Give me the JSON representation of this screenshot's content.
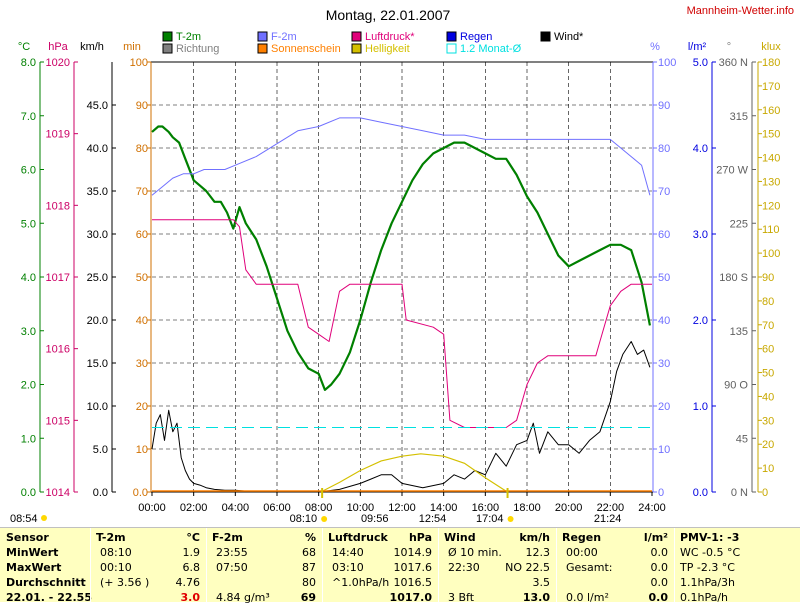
{
  "header": {
    "title": "Montag, 22.01.2007",
    "site": "Mannheim-Wetter.info"
  },
  "legend": [
    {
      "label": "T-2m",
      "color": "#008000"
    },
    {
      "label": "F-2m",
      "color": "#7070ff"
    },
    {
      "label": "Luftdruck*",
      "color": "#e0007a"
    },
    {
      "label": "Regen",
      "color": "#0000e0"
    },
    {
      "label": "Wind*",
      "color": "#000000"
    },
    {
      "label": "Richtung",
      "color": "#808080"
    },
    {
      "label": "Sonnenschein",
      "color": "#ff8000"
    },
    {
      "label": "Helligkeit",
      "color": "#d4c000"
    },
    {
      "label": "1.2 Monat-Ø",
      "color": "#00e0e0"
    }
  ],
  "units": {
    "temp": "°C",
    "pressure": "hPa",
    "wind": "km/h",
    "minutes": "min",
    "percent": "%",
    "rain": "l/m²",
    "direction": "°",
    "lux": "klux"
  },
  "axes": {
    "temp_ticks": [
      "8.0",
      "7.0",
      "6.0",
      "5.0",
      "4.0",
      "3.0",
      "2.0",
      "1.0",
      "0.0"
    ],
    "pressure_ticks": [
      "1020",
      "1019",
      "1018",
      "1017",
      "1016",
      "1015",
      "1014"
    ],
    "wind_ticks": [
      "45.0",
      "40.0",
      "35.0",
      "30.0",
      "25.0",
      "20.0",
      "15.0",
      "10.0",
      "5.0",
      "0.0"
    ],
    "min_ticks": [
      "100",
      "90",
      "80",
      "70",
      "60",
      "50",
      "40",
      "30",
      "20",
      "10",
      "0.0"
    ],
    "pct_ticks": [
      "100",
      "90",
      "80",
      "70",
      "60",
      "50",
      "40",
      "30",
      "20",
      "10",
      "0"
    ],
    "rain_ticks": [
      "5.0",
      "4.0",
      "3.0",
      "2.0",
      "1.0",
      "0.0"
    ],
    "dir_ticks": [
      "360 N",
      "315",
      "270 W",
      "225",
      "180 S",
      "135",
      "90 O",
      "45",
      "0 N"
    ],
    "lux_ticks": [
      "180",
      "170",
      "160",
      "150",
      "140",
      "130",
      "120",
      "110",
      "100",
      "90",
      "80",
      "70",
      "60",
      "50",
      "40",
      "30",
      "20",
      "10",
      "0"
    ],
    "time_ticks": [
      "00:00",
      "02:00",
      "04:00",
      "06:00",
      "08:00",
      "10:00",
      "12:00",
      "14:00",
      "16:00",
      "18:00",
      "20:00",
      "22:00",
      "24:00"
    ]
  },
  "markers": {
    "sunrise": "08:10",
    "noon": "12:54",
    "sunset": "17:04",
    "moonrise": "08:54",
    "moon_a": "09:56",
    "moon_b": "21:24"
  },
  "chart_data": {
    "type": "line",
    "title": "Montag, 22.01.2007",
    "x_unit": "hours",
    "xlim": [
      0,
      24
    ],
    "series": [
      {
        "name": "T-2m",
        "unit": "°C",
        "ylim": [
          0,
          8
        ],
        "color": "#008000",
        "x": [
          0,
          0.3,
          0.5,
          0.8,
          1.0,
          1.3,
          1.6,
          2.0,
          2.3,
          2.6,
          3.0,
          3.3,
          3.6,
          3.9,
          4.2,
          4.5,
          5.0,
          5.5,
          6.0,
          6.5,
          7.0,
          7.5,
          8.0,
          8.3,
          8.6,
          9.0,
          9.5,
          10.0,
          10.5,
          11.0,
          11.5,
          12.0,
          12.5,
          13.0,
          13.5,
          14.0,
          14.5,
          15.0,
          15.5,
          16.0,
          16.5,
          17.0,
          17.5,
          18.0,
          18.5,
          19.0,
          19.5,
          20.0,
          20.5,
          21.0,
          21.5,
          22.0,
          22.5,
          23.0,
          23.5,
          23.9
        ],
        "y": [
          6.7,
          6.8,
          6.8,
          6.7,
          6.6,
          6.5,
          6.2,
          5.8,
          5.7,
          5.6,
          5.4,
          5.4,
          5.2,
          4.9,
          5.3,
          5.0,
          4.7,
          4.2,
          3.6,
          3.0,
          2.6,
          2.3,
          2.2,
          1.9,
          2.0,
          2.2,
          2.6,
          3.2,
          3.9,
          4.5,
          5.0,
          5.4,
          5.8,
          6.1,
          6.3,
          6.4,
          6.5,
          6.5,
          6.4,
          6.3,
          6.2,
          6.2,
          5.9,
          5.5,
          5.2,
          4.8,
          4.4,
          4.2,
          4.3,
          4.4,
          4.5,
          4.6,
          4.6,
          4.5,
          3.9,
          3.1
        ]
      },
      {
        "name": "F-2m",
        "unit": "%",
        "ylim": [
          0,
          100
        ],
        "color": "#7070ff",
        "x": [
          0,
          0.5,
          1.0,
          1.5,
          2.0,
          2.5,
          3.0,
          3.5,
          4.0,
          5.0,
          6.0,
          7.0,
          8.0,
          9.0,
          10.0,
          11.0,
          12.0,
          13.0,
          14.0,
          15.0,
          16.0,
          17.0,
          18.0,
          19.0,
          20.0,
          21.0,
          22.0,
          22.5,
          23.0,
          23.5,
          23.9
        ],
        "y": [
          69,
          71,
          73,
          74,
          74,
          75,
          75,
          75,
          76,
          78,
          81,
          84,
          85,
          87,
          87,
          86,
          85,
          84,
          83,
          83,
          82,
          82,
          82,
          82,
          82,
          82,
          82,
          80,
          78,
          76,
          69
        ]
      },
      {
        "name": "Luftdruck*",
        "unit": "hPa",
        "ylim": [
          1014,
          1020
        ],
        "color": "#e0007a",
        "x": [
          0,
          2.0,
          3.9,
          4.2,
          4.5,
          5.0,
          6.0,
          7.0,
          7.5,
          8.0,
          8.5,
          9.0,
          9.5,
          10.0,
          11.0,
          12.0,
          12.2,
          13.5,
          14.0,
          14.3,
          15.0,
          16.0,
          17.0,
          17.5,
          18.0,
          18.5,
          19.0,
          20.0,
          21.0,
          21.3,
          21.5,
          22.0,
          22.5,
          23.0,
          24.0
        ],
        "y": [
          1017.8,
          1017.8,
          1017.8,
          1017.7,
          1017.1,
          1016.9,
          1016.9,
          1016.9,
          1016.3,
          1016.2,
          1016.1,
          1016.8,
          1016.9,
          1016.9,
          1016.9,
          1016.9,
          1016.4,
          1016.3,
          1016.2,
          1015.0,
          1014.9,
          1014.9,
          1014.9,
          1015.0,
          1015.5,
          1015.8,
          1015.9,
          1015.9,
          1015.9,
          1015.9,
          1016.1,
          1016.6,
          1016.8,
          1016.9,
          1016.9
        ]
      },
      {
        "name": "Wind*",
        "unit": "km/h",
        "ylim": [
          0,
          50
        ],
        "color": "#000000",
        "x": [
          0,
          0.2,
          0.4,
          0.6,
          0.8,
          1.0,
          1.2,
          1.4,
          1.6,
          1.8,
          2.0,
          2.3,
          2.6,
          3.0,
          3.5,
          4.0,
          4.5,
          5.0,
          6.0,
          7.0,
          8.0,
          9.0,
          10.0,
          10.5,
          11.0,
          11.5,
          12.0,
          13.0,
          14.0,
          14.5,
          15.0,
          15.5,
          16.0,
          16.5,
          17.0,
          17.5,
          18.0,
          18.3,
          18.6,
          19.0,
          19.5,
          20.0,
          20.5,
          21.0,
          21.5,
          22.0,
          22.3,
          22.6,
          23.0,
          23.3,
          23.6,
          23.9
        ],
        "y": [
          5.0,
          8.0,
          9.0,
          6.0,
          9.5,
          7.0,
          8.0,
          4.0,
          2.5,
          1.5,
          1.0,
          0.8,
          0.5,
          0.3,
          0.2,
          0.2,
          0.1,
          0.1,
          0.0,
          0.0,
          0.0,
          0.3,
          1.0,
          1.5,
          2.0,
          2.0,
          1.0,
          0.5,
          1.0,
          2.0,
          1.5,
          2.5,
          2.0,
          4.5,
          3.0,
          5.5,
          6.0,
          8.0,
          4.5,
          7.0,
          5.5,
          5.5,
          4.5,
          6.0,
          7.0,
          10.5,
          14.0,
          16.0,
          17.5,
          16.0,
          16.5,
          14.5
        ]
      },
      {
        "name": "Helligkeit",
        "unit": "klux",
        "ylim": [
          0,
          180
        ],
        "color": "#d4c000",
        "x": [
          8.1,
          9.0,
          10.0,
          11.0,
          12.0,
          12.9,
          14.0,
          15.0,
          16.0,
          17.06
        ],
        "y": [
          0,
          4,
          9,
          13,
          15,
          16,
          15,
          12,
          6,
          0
        ]
      },
      {
        "name": "1.2 Monat-Ø",
        "unit": "°C",
        "ylim": [
          0,
          8
        ],
        "color": "#00e0e0",
        "x": [
          0,
          24
        ],
        "y": [
          1.2,
          1.2
        ]
      }
    ]
  },
  "stats": {
    "col1": {
      "header": "Sensor",
      "rows": [
        "MinWert",
        "MaxWert",
        "Durchschnitt",
        "22.01. - 22.55"
      ]
    },
    "col2": {
      "header": "T-2m",
      "unit": "°C",
      "rows": [
        [
          "08:10",
          "1.9"
        ],
        [
          "00:10",
          "6.8"
        ],
        [
          "(+ 3.56 )",
          "4.76"
        ],
        [
          "",
          "3.0"
        ]
      ]
    },
    "col3": {
      "header": "F-2m",
      "unit": "%",
      "rows": [
        [
          "23:55",
          "68"
        ],
        [
          "07:50",
          "87"
        ],
        [
          "",
          "80"
        ],
        [
          "4.84 g/m³",
          "69"
        ]
      ]
    },
    "col4": {
      "header": "Luftdruck",
      "unit": "hPa",
      "rows": [
        [
          "14:40",
          "1014.9"
        ],
        [
          "03:10",
          "1017.6"
        ],
        [
          "^1.0hPa/h",
          "1016.5"
        ],
        [
          "",
          "1017.0"
        ]
      ]
    },
    "col5": {
      "header": "Wind",
      "unit": "km/h",
      "rows": [
        [
          "Ø 10 min.",
          "12.3"
        ],
        [
          "22:30",
          "NO 22.5"
        ],
        [
          "",
          "3.5"
        ],
        [
          "3 Bft",
          "13.0"
        ]
      ]
    },
    "col6": {
      "header": "Regen",
      "unit": "l/m²",
      "rows": [
        [
          "00:00",
          "0.0"
        ],
        [
          "Gesamt:",
          "0.0"
        ],
        [
          "",
          "0.0"
        ],
        [
          "0.0 l/m²",
          "0.0"
        ]
      ]
    },
    "col7": {
      "header": "PMV-1: -3",
      "rows": [
        "WC -0.5 °C",
        "TP -2.3 °C",
        "1.1hPa/3h",
        "0.1hPa/h"
      ]
    }
  }
}
